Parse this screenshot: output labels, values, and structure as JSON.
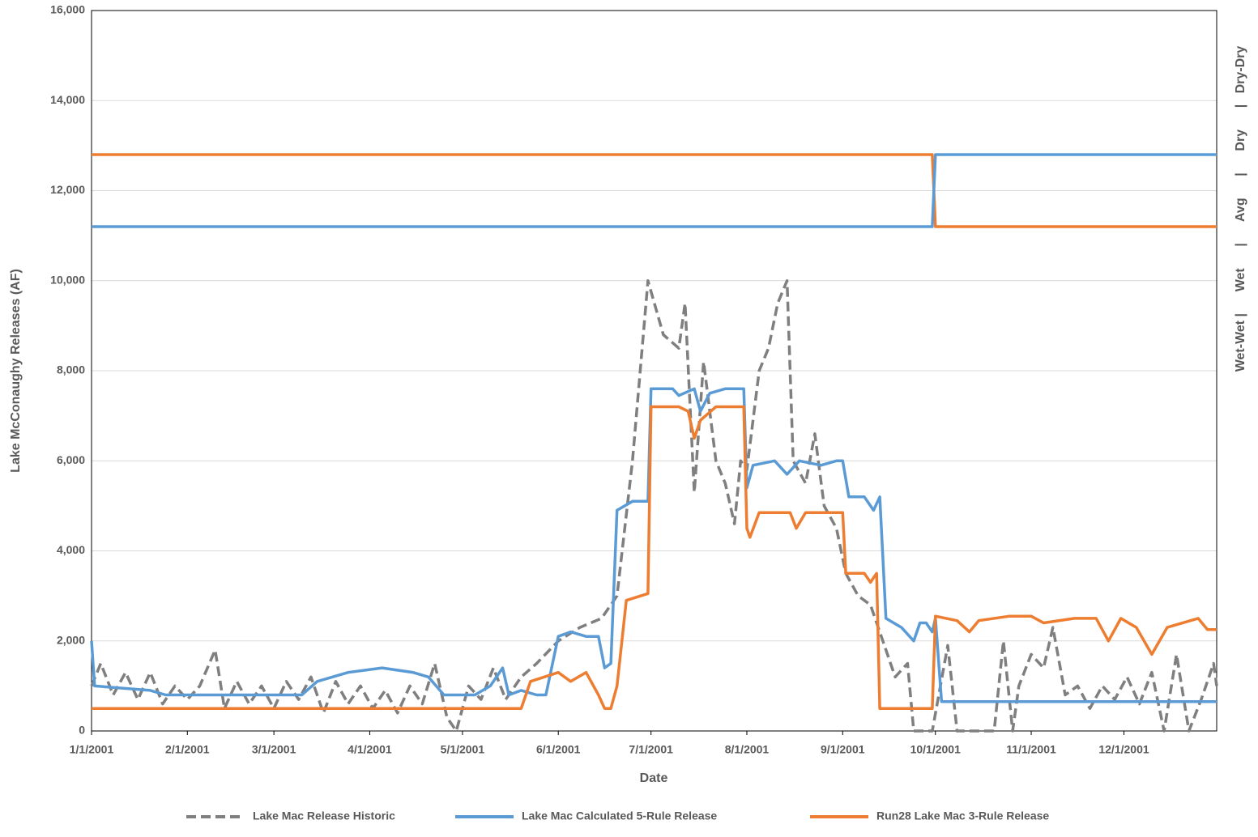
{
  "chart_data": {
    "type": "line",
    "y_label": "Lake McConaughy Releases (AF)",
    "x_label": "Date",
    "y2_label": "Wet-Wet |      Wet      |      Avg      |      Dry      |   Dry-Dry",
    "xlim": [
      "1/1/2001",
      "12/31/2001"
    ],
    "xticks": [
      "1/1/2001",
      "2/1/2001",
      "3/1/2001",
      "4/1/2001",
      "5/1/2001",
      "6/1/2001",
      "7/1/2001",
      "8/1/2001",
      "9/1/2001",
      "10/1/2001",
      "11/1/2001",
      "12/1/2001"
    ],
    "ylim": [
      0,
      16000
    ],
    "yticks": [
      0,
      {
        "value": 2000,
        "label": "2,000"
      },
      {
        "value": 4000,
        "label": "4,000"
      },
      {
        "value": 6000,
        "label": "6,000"
      },
      {
        "value": 8000,
        "label": "8,000"
      },
      {
        "value": 10000,
        "label": "10,000"
      },
      {
        "value": 12000,
        "label": "12,000"
      },
      {
        "value": 14000,
        "label": "14,000"
      },
      {
        "value": 16000,
        "label": "16,000"
      }
    ],
    "grid": true,
    "legend": "bottom",
    "series": [
      {
        "name": "Lake Mac Release Historic",
        "color": "#7f7f7f",
        "dash": true,
        "x": [
          "1/1/2001",
          "1/4/2001",
          "1/8/2001",
          "1/12/2001",
          "1/16/2001",
          "1/20/2001",
          "1/24/2001",
          "1/28/2001",
          "2/1/2001",
          "2/5/2001",
          "2/10/2001",
          "2/13/2001",
          "2/17/2001",
          "2/21/2001",
          "2/25/2001",
          "3/1/2001",
          "3/5/2001",
          "3/9/2001",
          "3/13/2001",
          "3/17/2001",
          "3/21/2001",
          "3/25/2001",
          "3/29/2001",
          "4/2/2001",
          "4/6/2001",
          "4/10/2001",
          "4/14/2001",
          "4/18/2001",
          "4/22/2001",
          "4/26/2001",
          "4/29/2001",
          "5/3/2001",
          "5/7/2001",
          "5/11/2001",
          "5/15/2001",
          "5/20/2001",
          "5/25/2001",
          "6/1/2001",
          "6/8/2001",
          "6/15/2001",
          "6/20/2001",
          "6/25/2001",
          "6/30/2001",
          "7/5/2001",
          "7/10/2001",
          "7/12/2001",
          "7/15/2001",
          "7/18/2001",
          "7/22/2001",
          "7/25/2001",
          "7/28/2001",
          "7/30/2001",
          "8/1/2001",
          "8/5/2001",
          "8/8/2001",
          "8/11/2001",
          "8/14/2001",
          "8/16/2001",
          "8/20/2001",
          "8/23/2001",
          "8/26/2001",
          "8/30/2001",
          "9/2/2001",
          "9/6/2001",
          "9/10/2001",
          "9/14/2001",
          "9/18/2001",
          "9/22/2001",
          "9/24/2001",
          "9/30/2001",
          "10/5/2001",
          "10/8/2001",
          "10/20/2001",
          "10/23/2001",
          "10/26/2001",
          "10/28/2001",
          "11/1/2001",
          "11/5/2001",
          "11/8/2001",
          "11/12/2001",
          "11/16/2001",
          "11/20/2001",
          "11/24/2001",
          "11/28/2001",
          "12/2/2001",
          "12/6/2001",
          "12/10/2001",
          "12/14/2001",
          "12/18/2001",
          "12/22/2001",
          "12/26/2001",
          "12/30/2001",
          "12/31/2001"
        ],
        "values": [
          1000,
          1500,
          800,
          1300,
          700,
          1300,
          600,
          1000,
          700,
          1000,
          1800,
          500,
          1100,
          600,
          1000,
          500,
          1100,
          700,
          1200,
          400,
          1100,
          600,
          1000,
          500,
          900,
          400,
          1000,
          600,
          1500,
          300,
          0,
          1000,
          700,
          1400,
          700,
          1200,
          1500,
          2000,
          2300,
          2500,
          3000,
          6000,
          10000,
          8800,
          8500,
          9500,
          5300,
          8200,
          6000,
          5500,
          4600,
          6000,
          5800,
          8000,
          8500,
          9500,
          10000,
          6000,
          5500,
          6600,
          5000,
          4500,
          3500,
          3000,
          2800,
          2000,
          1200,
          1500,
          0,
          0,
          1900,
          0,
          0,
          2000,
          0,
          1000,
          1700,
          1400,
          2300,
          800,
          1000,
          500,
          1000,
          700,
          1200,
          600,
          1300,
          0,
          1700,
          0,
          700,
          1500,
          1000
        ]
      },
      {
        "name": "Lake Mac Calculated 5-Rule Release",
        "color": "#5b9bd5",
        "x": [
          "1/1/2001",
          "1/2/2001",
          "1/20/2001",
          "1/25/2001",
          "3/10/2001",
          "3/15/2001",
          "3/25/2001",
          "4/5/2001",
          "4/15/2001",
          "4/20/2001",
          "4/25/2001",
          "5/5/2001",
          "5/10/2001",
          "5/14/2001",
          "5/16/2001",
          "5/20/2001",
          "5/25/2001",
          "5/28/2001",
          "6/1/2001",
          "6/5/2001",
          "6/10/2001",
          "6/14/2001",
          "6/16/2001",
          "6/18/2001",
          "6/20/2001",
          "6/25/2001",
          "6/30/2001",
          "7/1/2001",
          "7/8/2001",
          "7/10/2001",
          "7/15/2001",
          "7/17/2001",
          "7/20/2001",
          "7/25/2001",
          "7/31/2001",
          "8/1/2001",
          "8/3/2001",
          "8/10/2001",
          "8/14/2001",
          "8/18/2001",
          "8/25/2001",
          "8/30/2001",
          "9/1/2001",
          "9/3/2001",
          "9/8/2001",
          "9/11/2001",
          "9/13/2001",
          "9/15/2001",
          "9/20/2001",
          "9/24/2001",
          "9/26/2001",
          "9/28/2001",
          "9/30/2001",
          "10/1/2001",
          "10/3/2001",
          "12/31/2001"
        ],
        "values": [
          2000,
          1000,
          900,
          800,
          800,
          1100,
          1300,
          1400,
          1300,
          1200,
          800,
          800,
          1000,
          1400,
          800,
          900,
          800,
          800,
          2100,
          2200,
          2100,
          2100,
          1400,
          1500,
          4900,
          5100,
          5100,
          7600,
          7600,
          7450,
          7600,
          7100,
          7500,
          7600,
          7600,
          5400,
          5900,
          6000,
          5700,
          6000,
          5900,
          6000,
          6000,
          5200,
          5200,
          4900,
          5200,
          2500,
          2300,
          2000,
          2400,
          2400,
          2200,
          2500,
          650,
          650
        ]
      },
      {
        "name": "Run28 Lake Mac 3-Rule Release",
        "color": "#ed7d31",
        "x": [
          "1/1/2001",
          "5/20/2001",
          "5/23/2001",
          "6/1/2001",
          "6/5/2001",
          "6/10/2001",
          "6/14/2001",
          "6/16/2001",
          "6/18/2001",
          "6/20/2001",
          "6/23/2001",
          "6/30/2001",
          "7/1/2001",
          "7/10/2001",
          "7/13/2001",
          "7/15/2001",
          "7/17/2001",
          "7/22/2001",
          "7/31/2001",
          "8/1/2001",
          "8/2/2001",
          "8/5/2001",
          "8/15/2001",
          "8/17/2001",
          "8/20/2001",
          "9/1/2001",
          "9/2/2001",
          "9/8/2001",
          "9/10/2001",
          "9/12/2001",
          "9/13/2001",
          "9/30/2001",
          "10/1/2001",
          "10/8/2001",
          "10/12/2001",
          "10/15/2001",
          "10/25/2001",
          "11/1/2001",
          "11/5/2001",
          "11/15/2001",
          "11/22/2001",
          "11/26/2001",
          "11/30/2001",
          "12/5/2001",
          "12/10/2001",
          "12/15/2001",
          "12/25/2001",
          "12/28/2001",
          "12/31/2001"
        ],
        "values": [
          500,
          500,
          1100,
          1300,
          1100,
          1300,
          800,
          500,
          500,
          1000,
          2900,
          3050,
          7200,
          7200,
          7100,
          6500,
          6900,
          7200,
          7200,
          4500,
          4300,
          4850,
          4850,
          4500,
          4850,
          4850,
          3500,
          3500,
          3300,
          3500,
          500,
          500,
          2550,
          2450,
          2200,
          2450,
          2550,
          2550,
          2400,
          2500,
          2500,
          2000,
          2500,
          2300,
          1700,
          2300,
          2500,
          2250,
          2250
        ]
      }
    ],
    "year_type_lines": [
      {
        "color": "#ed7d31",
        "x": [
          "1/1/2001",
          "9/30/2001",
          "10/1/2001",
          "12/31/2001"
        ],
        "values": [
          12800,
          12800,
          11200,
          11200
        ]
      },
      {
        "color": "#5b9bd5",
        "x": [
          "1/1/2001",
          "9/30/2001",
          "10/1/2001",
          "12/31/2001"
        ],
        "values": [
          11200,
          11200,
          12800,
          12800
        ]
      }
    ]
  }
}
